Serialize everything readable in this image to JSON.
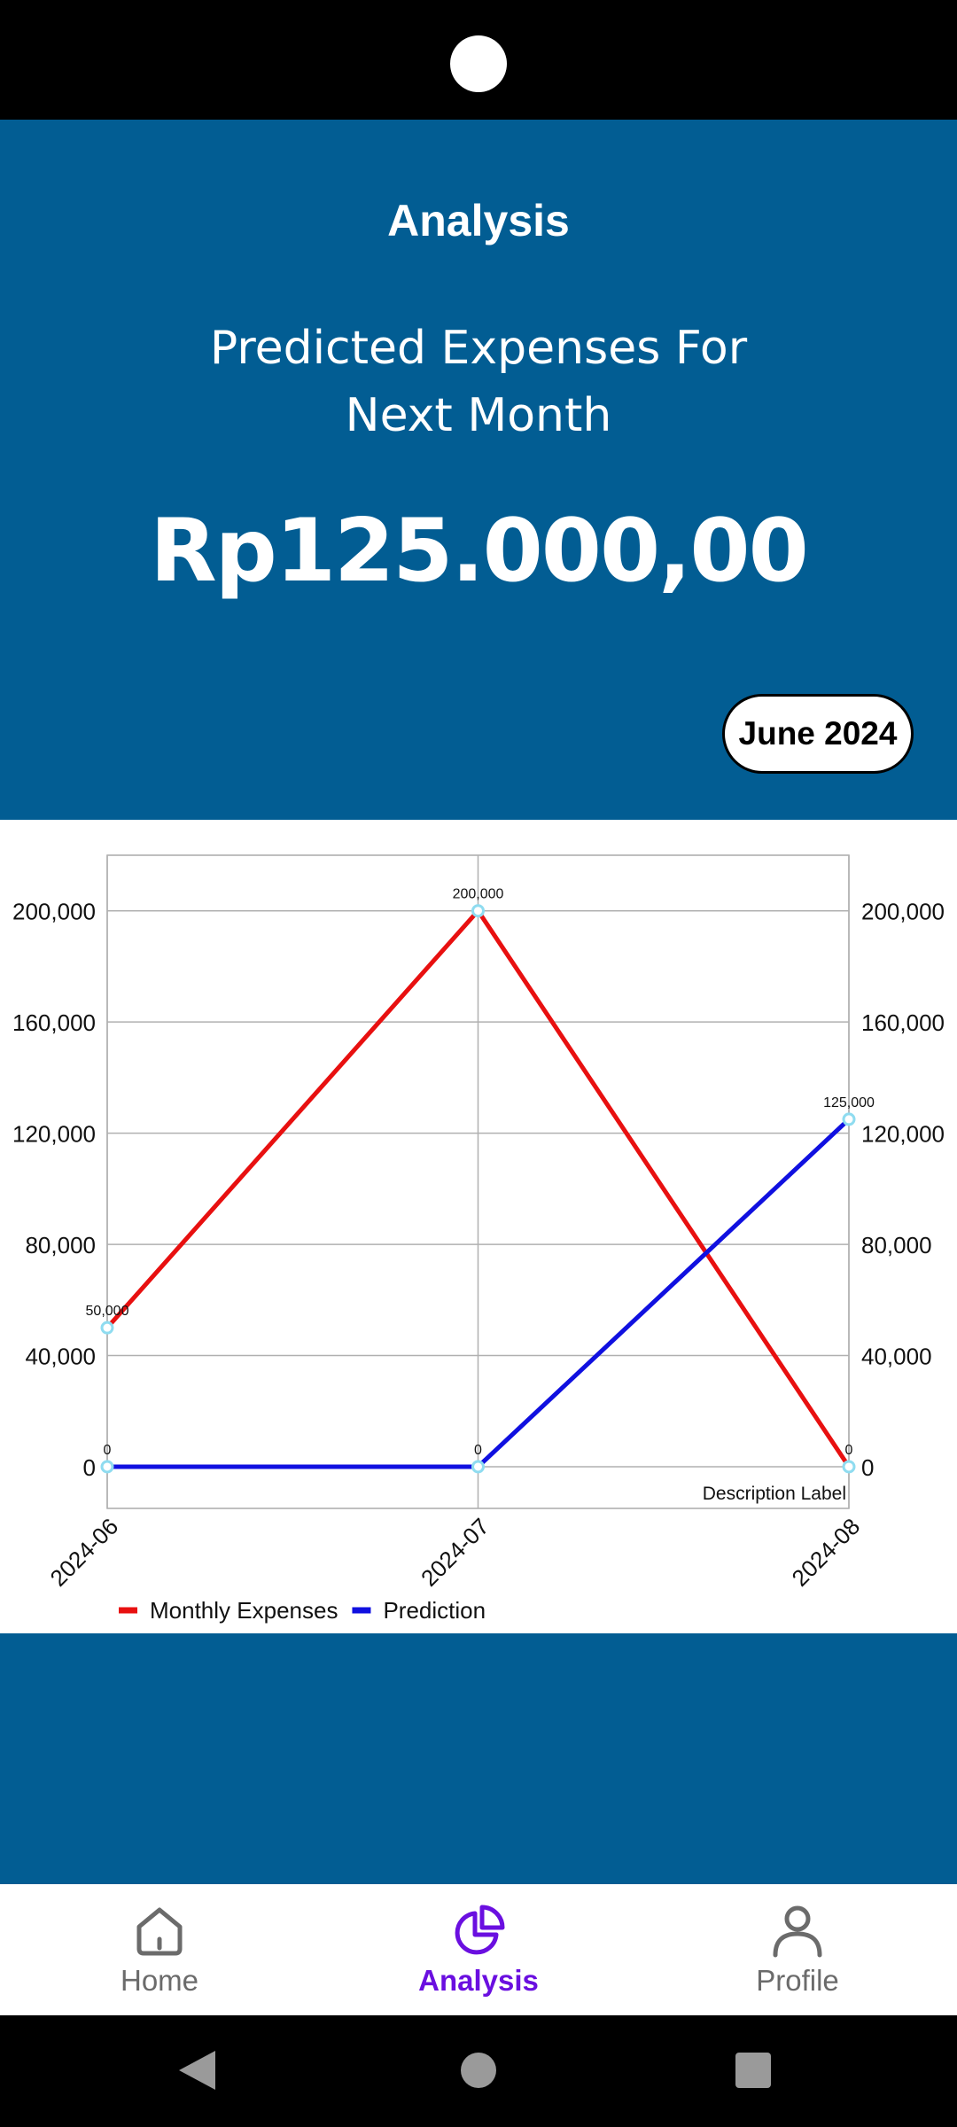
{
  "header": {
    "title": "Analysis",
    "predict_title": "Predicted Expenses For Next Month",
    "predict_amount": "Rp125.000,00",
    "month_selector": "June 2024"
  },
  "chart_data": {
    "type": "line",
    "categories": [
      "2024-06",
      "2024-07",
      "2024-08"
    ],
    "series": [
      {
        "name": "Monthly Expenses",
        "color": "#e81010",
        "values": [
          50000,
          200000,
          0
        ]
      },
      {
        "name": "Prediction",
        "color": "#1010e0",
        "values": [
          0,
          0,
          125000
        ]
      }
    ],
    "ylim": [
      -15000,
      220000
    ],
    "y_ticks": [
      0,
      40000,
      80000,
      120000,
      160000,
      200000
    ],
    "y_tick_labels": [
      "0",
      "40,000",
      "80,000",
      "120,000",
      "160,000",
      "200,000"
    ],
    "description": "Description Label",
    "legend_position": "bottom-left",
    "grid": true
  },
  "nav": {
    "items": [
      {
        "label": "Home",
        "icon": "home-icon"
      },
      {
        "label": "Analysis",
        "icon": "pie-chart-icon",
        "active": true
      },
      {
        "label": "Profile",
        "icon": "person-icon"
      }
    ]
  },
  "colors": {
    "primary": "#025d93",
    "active_nav": "#6a0fe0",
    "point_fill": "#ffffff",
    "point_stroke": "#8fdcf0"
  }
}
